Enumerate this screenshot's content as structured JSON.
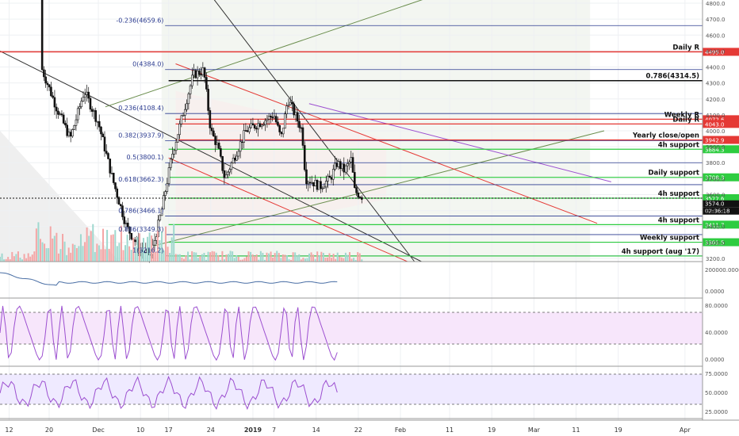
{
  "chart_data": {
    "type": "candlestick",
    "title": "",
    "price_axis": {
      "ticks": [
        4800,
        4700,
        4600,
        4500,
        4400,
        4300,
        4200,
        4100,
        4000,
        3900,
        3800,
        3700,
        3600,
        3500,
        3400,
        3300,
        3200
      ],
      "ylim": [
        3180,
        4820
      ]
    },
    "x_axis_labels": [
      "12",
      "20",
      "Dec",
      "10",
      "17",
      "24",
      "2019",
      "7",
      "14",
      "22",
      "Feb",
      "11",
      "19",
      "Mar",
      "11",
      "19",
      "Apr"
    ],
    "price_path": [
      [
        0,
        4900
      ],
      [
        0.05,
        4500
      ],
      [
        0.08,
        4150
      ],
      [
        0.1,
        3950
      ],
      [
        0.12,
        4250
      ],
      [
        0.14,
        4050
      ],
      [
        0.16,
        3700
      ],
      [
        0.18,
        3400
      ],
      [
        0.2,
        3250
      ],
      [
        0.215,
        3220
      ],
      [
        0.23,
        3500
      ],
      [
        0.245,
        3850
      ],
      [
        0.26,
        4100
      ],
      [
        0.275,
        4350
      ],
      [
        0.29,
        4380
      ],
      [
        0.3,
        4000
      ],
      [
        0.31,
        3900
      ],
      [
        0.32,
        3700
      ],
      [
        0.335,
        3850
      ],
      [
        0.35,
        4000
      ],
      [
        0.37,
        4050
      ],
      [
        0.39,
        4100
      ],
      [
        0.4,
        3950
      ],
      [
        0.41,
        4200
      ],
      [
        0.42,
        4100
      ],
      [
        0.43,
        4000
      ],
      [
        0.435,
        3700
      ],
      [
        0.445,
        3680
      ],
      [
        0.455,
        3650
      ],
      [
        0.47,
        3700
      ],
      [
        0.48,
        3800
      ],
      [
        0.49,
        3750
      ],
      [
        0.5,
        3820
      ],
      [
        0.505,
        3620
      ],
      [
        0.515,
        3590
      ]
    ],
    "fib_levels": [
      {
        "label": "-0.236(4659.6)",
        "value": 4659.6
      },
      {
        "label": "0(4384.0)",
        "value": 4384.0
      },
      {
        "label": "0.236(4108.4)",
        "value": 4108.4
      },
      {
        "label": "0.382(3937.9)",
        "value": 3937.9
      },
      {
        "label": "0.5(3800.1)",
        "value": 3800.1
      },
      {
        "label": "0.618(3662.3)",
        "value": 3662.3
      },
      {
        "label": "0.786(3466.1)",
        "value": 3466.1
      },
      {
        "label": "0.886(3349.3)",
        "value": 3349.3
      },
      {
        "label": "1(3216.2)",
        "value": 3216.2
      }
    ],
    "levels": [
      {
        "name": "Daily R",
        "value": 4495.0,
        "tag": "4495.0",
        "color": "#e53935"
      },
      {
        "name": "0.786(4314.5)",
        "value": 4314.5,
        "tag": "",
        "color": "#111111"
      },
      {
        "name": "Weekly R",
        "value": 4072.6,
        "tag": "4072.6",
        "color": "#e53935"
      },
      {
        "name": "Daily R",
        "value": 4043.0,
        "tag": "4043.0",
        "color": "#e53935"
      },
      {
        "name": "Yearly close/open",
        "value": 3942.9,
        "tag": "3942.9",
        "color": "#e53935"
      },
      {
        "name": "4h support",
        "value": 3884.3,
        "tag": "3884.3",
        "color": "#2ecc40"
      },
      {
        "name": "Daily support",
        "value": 3708.3,
        "tag": "3708.3",
        "color": "#2ecc40"
      },
      {
        "name": "4h support",
        "value": 3577.6,
        "tag": "3577.6",
        "color": "#2ecc40"
      },
      {
        "name": "4h support",
        "value": 3411.7,
        "tag": "3411.7",
        "color": "#2ecc40"
      },
      {
        "name": "Weekly support",
        "value": 3301.5,
        "tag": "3301.5",
        "color": "#2ecc40"
      },
      {
        "name": "4h support (aug '17)",
        "value": 3215.0,
        "tag": "",
        "color": "#2ecc40"
      }
    ],
    "current_price": {
      "value": 3574.0,
      "tag": "3574.0",
      "countdown": "02:36:18"
    },
    "panels": [
      {
        "name": "volume-indicator",
        "ticks": [
          "200000.0000",
          "0.0000"
        ]
      },
      {
        "name": "stoch-rsi",
        "ticks": [
          "80.0000",
          "40.0000",
          "0.0000"
        ],
        "band": [
          20,
          80
        ]
      },
      {
        "name": "rsi",
        "ticks": [
          "75.0000",
          "50.0000",
          "25.0000"
        ],
        "band": [
          30,
          70
        ]
      }
    ],
    "grid": true,
    "colors": {
      "up": "#26a69a",
      "down": "#111111",
      "fib": "#2a3a8f",
      "resistance": "#e53935",
      "support": "#2ecc40",
      "osc": "#9c4fd0"
    }
  }
}
